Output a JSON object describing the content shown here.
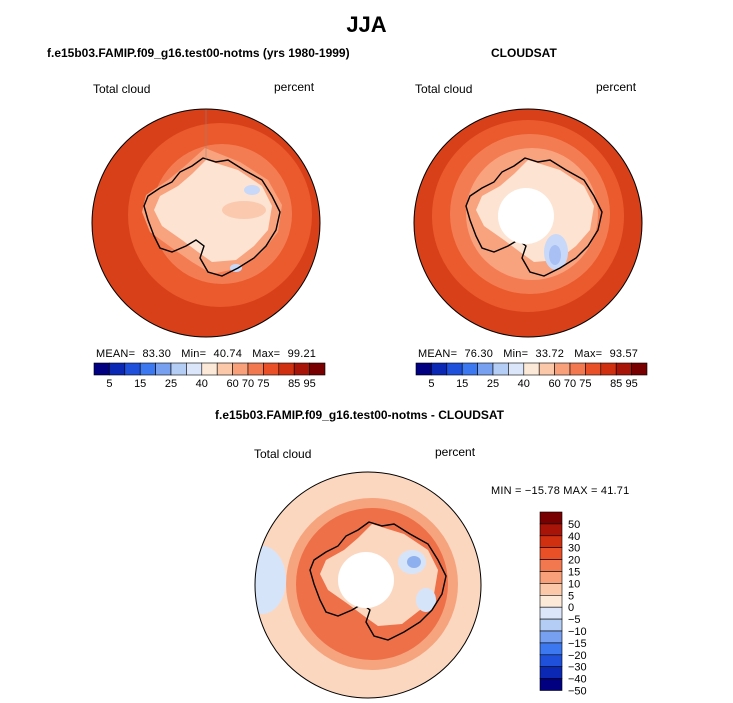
{
  "figure": {
    "title": "JJA"
  },
  "panels": {
    "model": {
      "title": "f.e15b03.FAMIP.f09_g16.test00-notms (yrs 1980-1999)",
      "left_label": "Total cloud",
      "right_label": "percent",
      "stats": {
        "mean_label": "MEAN=",
        "mean": "83.30",
        "min_label": "Min=",
        "min": "40.74",
        "max_label": "Max=",
        "max": "99.21"
      }
    },
    "obs": {
      "title": "CLOUDSAT",
      "left_label": "Total cloud",
      "right_label": "percent",
      "stats": {
        "mean_label": "MEAN=",
        "mean": "76.30",
        "min_label": "Min=",
        "min": "33.72",
        "max_label": "Max=",
        "max": "93.57"
      }
    },
    "diff": {
      "title": "f.e15b03.FAMIP.f09_g16.test00-notms - CLOUDSAT",
      "left_label": "Total cloud",
      "right_label": "percent",
      "minmax": "MIN = −15.78 MAX =   41.71"
    }
  },
  "colorbar_top": {
    "colors": [
      "#000080",
      "#0a28b4",
      "#1e50dc",
      "#3c78f0",
      "#78a0f0",
      "#b4cdf5",
      "#dce6fa",
      "#fde9d8",
      "#fbc8aa",
      "#f8a07a",
      "#f27850",
      "#ea5028",
      "#d03010",
      "#a81408",
      "#780000"
    ],
    "tick_labels": [
      "5",
      "15",
      "25",
      "40",
      "60",
      "70",
      "75",
      "85",
      "95"
    ]
  },
  "colorbar_diff": {
    "colors": [
      "#780000",
      "#a81408",
      "#d03010",
      "#ea5028",
      "#f27850",
      "#f8a07a",
      "#fbc8aa",
      "#fde9d8",
      "#dce6fa",
      "#b4cdf5",
      "#78a0f0",
      "#3c78f0",
      "#1e50dc",
      "#0a28b4",
      "#000080"
    ],
    "tick_labels": [
      "50",
      "40",
      "30",
      "20",
      "15",
      "10",
      "5",
      "0",
      "−5",
      "−10",
      "−15",
      "−20",
      "−30",
      "−40",
      "−50"
    ]
  },
  "map_colors": {
    "ocean_dark": "#d8401a",
    "ocean_mid": "#ea5a2c",
    "ocean_light": "#f47c52",
    "coast_belt": "#f9a27e",
    "land_pale": "#fde3d2",
    "land_light": "#fbc9ae",
    "land_blue": "#c8d8f8",
    "land_blue2": "#a8c0f4",
    "hole": "#ffffff",
    "diff_ocean": "#fcd7c0",
    "diff_ring": "#f6a47e",
    "diff_red": "#ee7048",
    "diff_blue": "#d6e4fa",
    "diff_blue2": "#8fb0ee",
    "outline": "#000000"
  }
}
